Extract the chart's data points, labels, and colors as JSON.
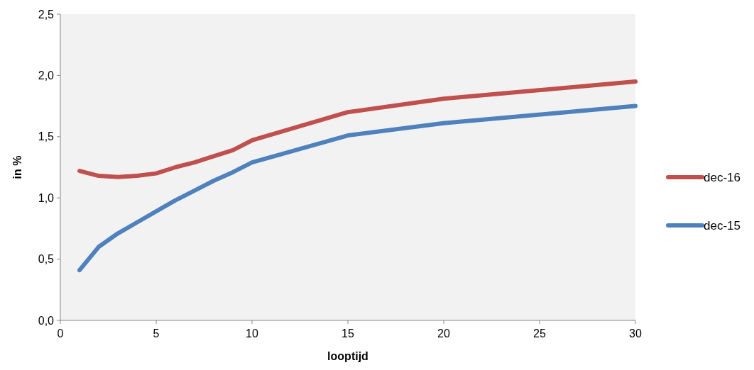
{
  "chart_data": {
    "type": "line",
    "xlabel": "looptijd",
    "ylabel": "in %",
    "x": [
      1,
      2,
      3,
      4,
      5,
      6,
      7,
      8,
      9,
      10,
      15,
      20,
      30
    ],
    "series": [
      {
        "name": "dec-16",
        "color": "#c0504d",
        "values": [
          1.22,
          1.18,
          1.17,
          1.18,
          1.2,
          1.25,
          1.29,
          1.34,
          1.39,
          1.47,
          1.7,
          1.81,
          1.95
        ]
      },
      {
        "name": "dec-15",
        "color": "#4f81bd",
        "values": [
          0.41,
          0.6,
          0.71,
          0.8,
          0.89,
          0.98,
          1.06,
          1.14,
          1.21,
          1.29,
          1.51,
          1.61,
          1.75
        ]
      }
    ],
    "xlim": [
      0,
      30
    ],
    "xticks": [
      0,
      5,
      10,
      15,
      20,
      25,
      30
    ],
    "ylim": [
      0,
      2.5
    ],
    "yticks": [
      {
        "value": 0,
        "label": "0,0"
      },
      {
        "value": 0.5,
        "label": "0,5"
      },
      {
        "value": 1,
        "label": "1,0"
      },
      {
        "value": 1.5,
        "label": "1,5"
      },
      {
        "value": 2,
        "label": "2,0"
      },
      {
        "value": 2.5,
        "label": "2,5"
      }
    ],
    "grid": false,
    "legend": "right",
    "marker": "none",
    "line_style": "solid"
  }
}
